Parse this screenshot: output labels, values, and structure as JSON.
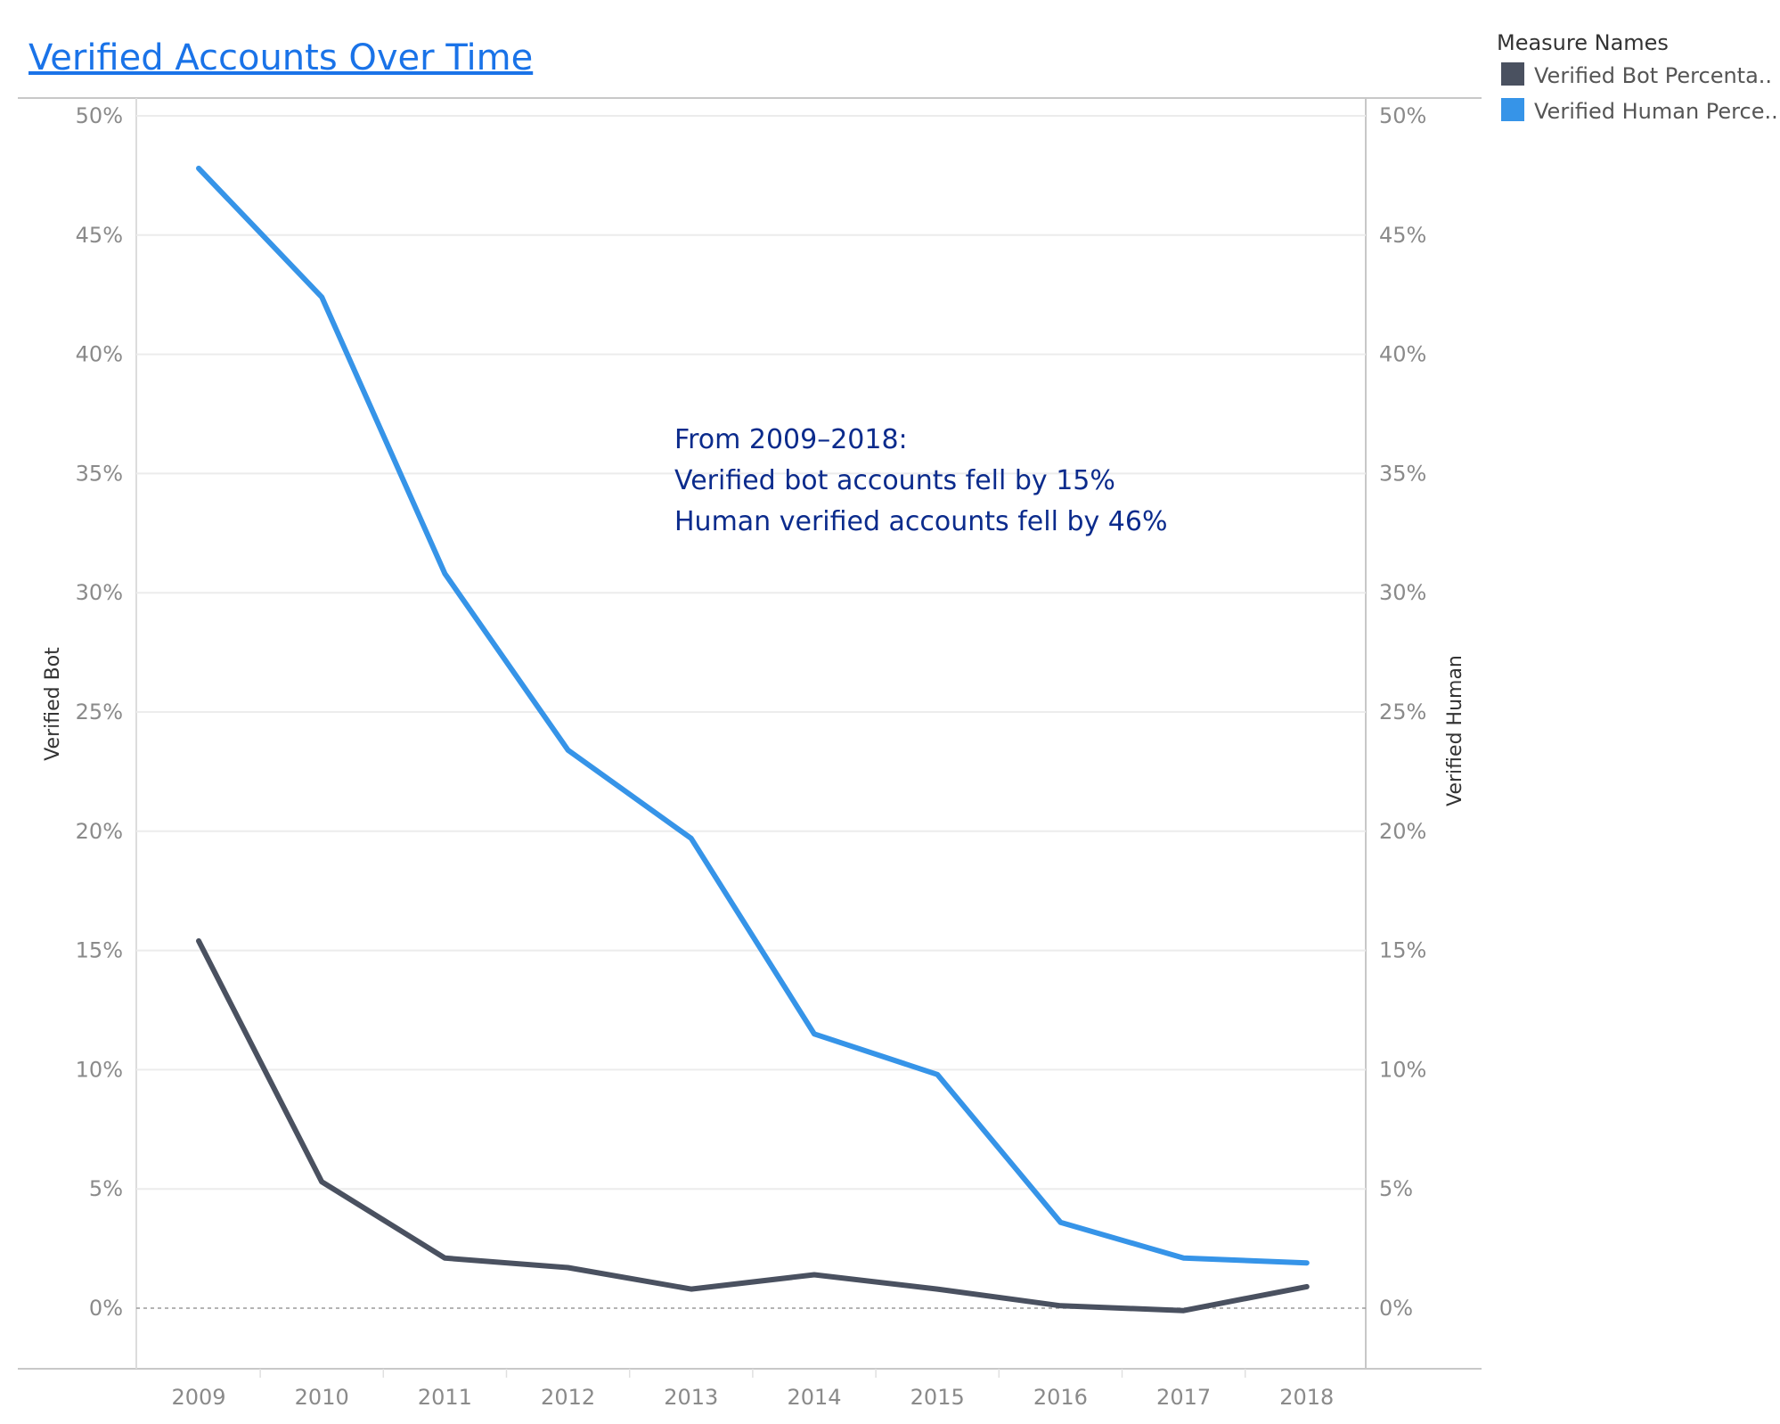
{
  "page": {
    "title": "Verified Accounts Over Time"
  },
  "legend": {
    "title": "Measure Names",
    "items": [
      {
        "label": "Verified Bot Percenta..",
        "color": "#4a5160"
      },
      {
        "label": "Verified Human Perce..",
        "color": "#3694e8"
      }
    ]
  },
  "annotation": {
    "lines": [
      "From 2009–2018:",
      "Verified bot accounts fell by 15%",
      "Human verified accounts fell by 46%"
    ]
  },
  "chart_data": {
    "type": "line",
    "title": "Verified Accounts Over Time",
    "categories": [
      "2009",
      "2010",
      "2011",
      "2012",
      "2013",
      "2014",
      "2015",
      "2016",
      "2017",
      "2018"
    ],
    "ylabel_left": "Verified Bot",
    "ylabel_right": "Verified Human",
    "ylim": [
      0,
      50
    ],
    "yticks": [
      0,
      5,
      10,
      15,
      20,
      25,
      30,
      35,
      40,
      45,
      50
    ],
    "ytick_suffix": "%",
    "grid": true,
    "legend_position": "top-right",
    "series": [
      {
        "name": "Verified Bot Percenta..",
        "color": "#4a5160",
        "values": [
          15.4,
          5.3,
          2.1,
          1.7,
          0.8,
          1.4,
          0.8,
          0.1,
          -0.1,
          0.9
        ]
      },
      {
        "name": "Verified Human Perce..",
        "color": "#3694e8",
        "values": [
          47.8,
          42.4,
          30.8,
          23.4,
          19.7,
          11.5,
          9.8,
          3.6,
          2.1,
          1.9
        ]
      }
    ]
  }
}
